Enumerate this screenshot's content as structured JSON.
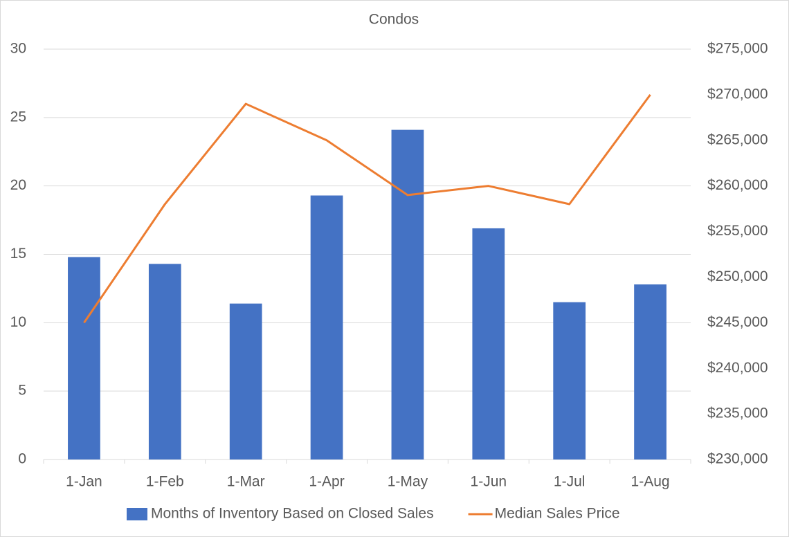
{
  "chart_data": {
    "type": "combo",
    "title": "Condos",
    "categories": [
      "1-Jan",
      "1-Feb",
      "1-Mar",
      "1-Apr",
      "1-May",
      "1-Jun",
      "1-Jul",
      "1-Aug"
    ],
    "series": [
      {
        "name": "Months of Inventory Based on Closed Sales",
        "type": "bar",
        "color": "#4472c4",
        "axis": "y",
        "values": [
          14.8,
          14.3,
          11.4,
          19.3,
          24.1,
          16.9,
          11.5,
          12.8
        ]
      },
      {
        "name": "Median Sales Price",
        "type": "line",
        "color": "#ed7d31",
        "axis": "y2",
        "values": [
          245000,
          258000,
          269000,
          265000,
          259000,
          260000,
          258000,
          270000
        ]
      }
    ],
    "ylim": [
      0,
      30
    ],
    "yticks": [
      0,
      5,
      10,
      15,
      20,
      25,
      30
    ],
    "y2lim": [
      230000,
      275000
    ],
    "y2ticks": [
      {
        "value": 230000,
        "label": "$230,000"
      },
      {
        "value": 235000,
        "label": "$235,000"
      },
      {
        "value": 240000,
        "label": "$240,000"
      },
      {
        "value": 245000,
        "label": "$245,000"
      },
      {
        "value": 250000,
        "label": "$250,000"
      },
      {
        "value": 255000,
        "label": "$255,000"
      },
      {
        "value": 260000,
        "label": "$260,000"
      },
      {
        "value": 265000,
        "label": "$265,000"
      },
      {
        "value": 270000,
        "label": "$270,000"
      },
      {
        "value": 275000,
        "label": "$275,000"
      }
    ],
    "grid": true,
    "legend": "bottom"
  }
}
